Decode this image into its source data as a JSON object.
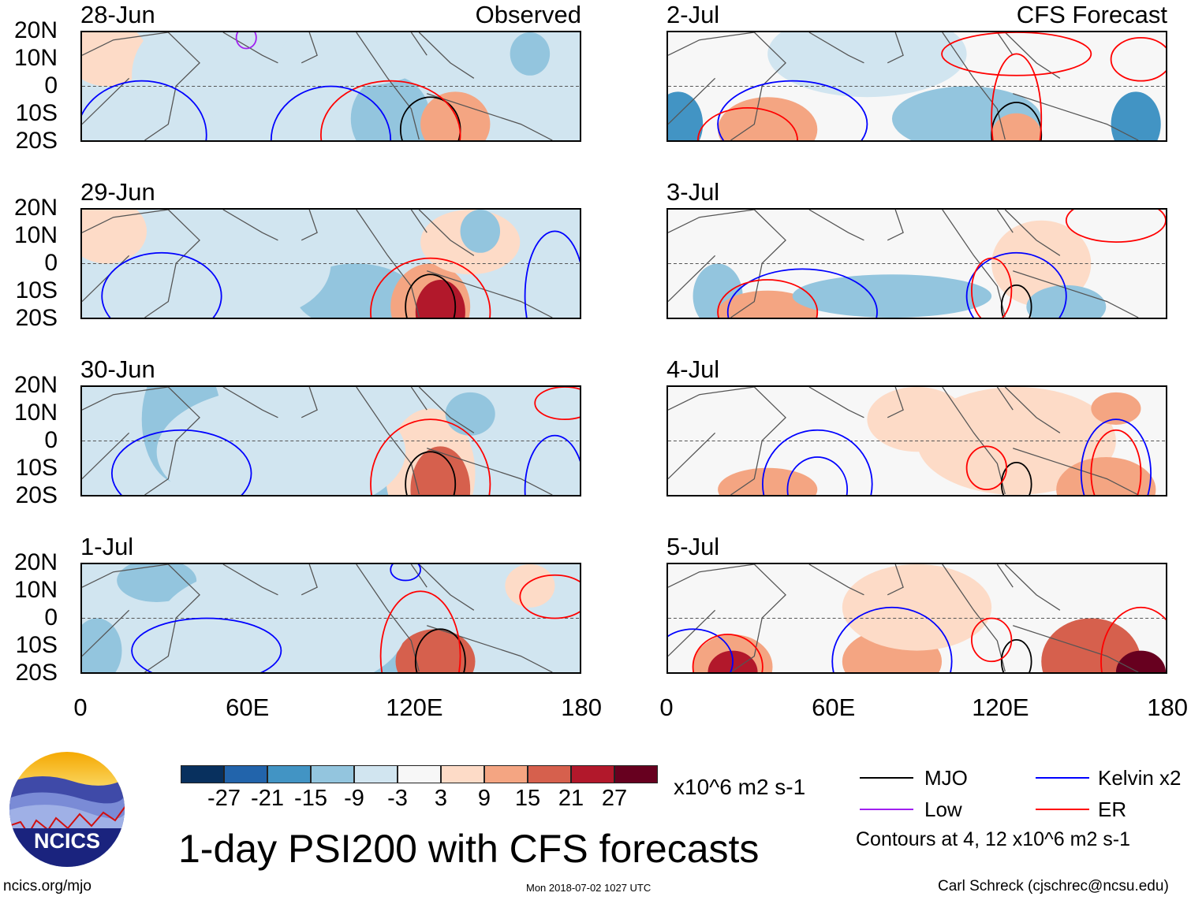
{
  "panels_left": [
    {
      "date": "28-Jun",
      "label": "Observed"
    },
    {
      "date": "29-Jun",
      "label": ""
    },
    {
      "date": "30-Jun",
      "label": ""
    },
    {
      "date": "1-Jul",
      "label": ""
    }
  ],
  "panels_right": [
    {
      "date": "2-Jul",
      "label": "CFS Forecast"
    },
    {
      "date": "3-Jul",
      "label": ""
    },
    {
      "date": "4-Jul",
      "label": ""
    },
    {
      "date": "5-Jul",
      "label": ""
    }
  ],
  "lat_ticks": [
    "20N",
    "10N",
    "0",
    "10S",
    "20S"
  ],
  "lon_ticks": [
    "0",
    "60E",
    "120E",
    "180"
  ],
  "colorbar": {
    "colors": [
      "#08305e",
      "#2264ab",
      "#4294c4",
      "#93c5de",
      "#d1e5f0",
      "#f7f7f7",
      "#fddbc7",
      "#f4a582",
      "#d6604d",
      "#b2182b",
      "#67001f"
    ],
    "labels": [
      "-27",
      "-21",
      "-15",
      "-9",
      "-3",
      "3",
      "9",
      "15",
      "21",
      "27"
    ],
    "units": "x10^6 m2 s-1"
  },
  "title": "1-day PSI200 with CFS forecasts",
  "legend": {
    "items": [
      {
        "label": "MJO",
        "color": "#000000"
      },
      {
        "label": "Kelvin x2",
        "color": "#0000ff"
      },
      {
        "label": "Low",
        "color": "#a020f0"
      },
      {
        "label": "ER",
        "color": "#ff0000"
      }
    ],
    "note": "Contours at 4, 12 x10^6 m2 s-1"
  },
  "logo_text": "NCICS",
  "footer": {
    "url": "ncics.org/mjo",
    "timestamp": "Mon 2018-07-02 1027 UTC",
    "credit": "Carl Schreck (cjschrec@ncsu.edu)"
  }
}
